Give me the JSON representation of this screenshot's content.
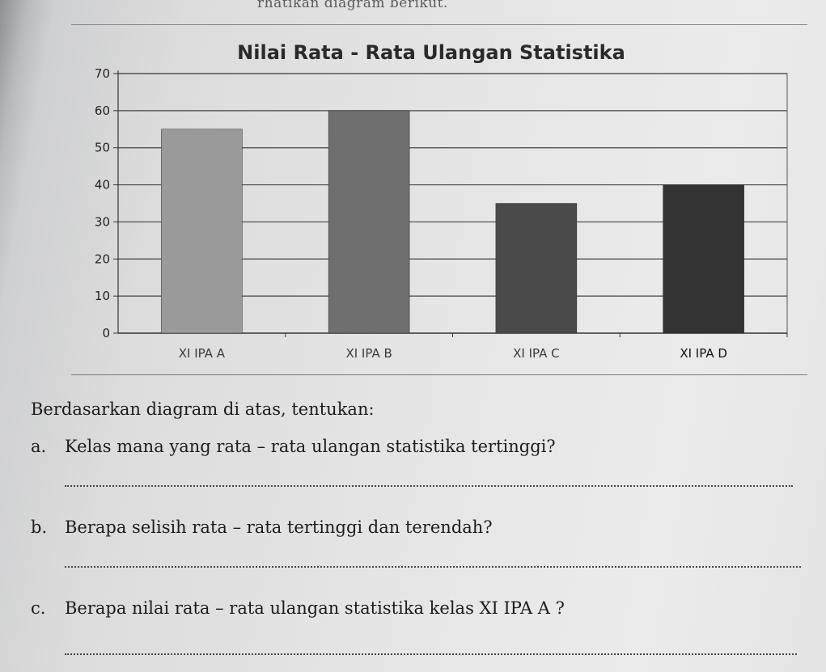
{
  "header": {
    "instruction_fragment": "rhatikan diagram berikut."
  },
  "chart_data": {
    "type": "bar",
    "title": "Nilai Rata - Rata Ulangan Statistika",
    "categories": [
      "XI IPA A",
      "XI IPA B",
      "XI IPA C",
      "XI IPA D"
    ],
    "values": [
      55,
      60,
      35,
      40
    ],
    "xlabel": "",
    "ylabel": "",
    "ylim": [
      0,
      70
    ],
    "yticks": [
      "0",
      "10",
      "20",
      "30",
      "40",
      "50",
      "60",
      "70"
    ],
    "grid": true,
    "legend": "none",
    "colors": [
      "#9a9a9a",
      "#6e6e6e",
      "#4a4a4a",
      "#333333"
    ]
  },
  "questions": {
    "intro": "Berdasarkan diagram di atas, tentukan:",
    "items": [
      {
        "letter": "a.",
        "text": "Kelas mana yang rata – rata ulangan statistika tertinggi?"
      },
      {
        "letter": "b.",
        "text": "Berapa selisih rata – rata tertinggi dan terendah?"
      },
      {
        "letter": "c.",
        "text": "Berapa nilai rata – rata ulangan statistika kelas XI IPA A ?"
      }
    ]
  }
}
